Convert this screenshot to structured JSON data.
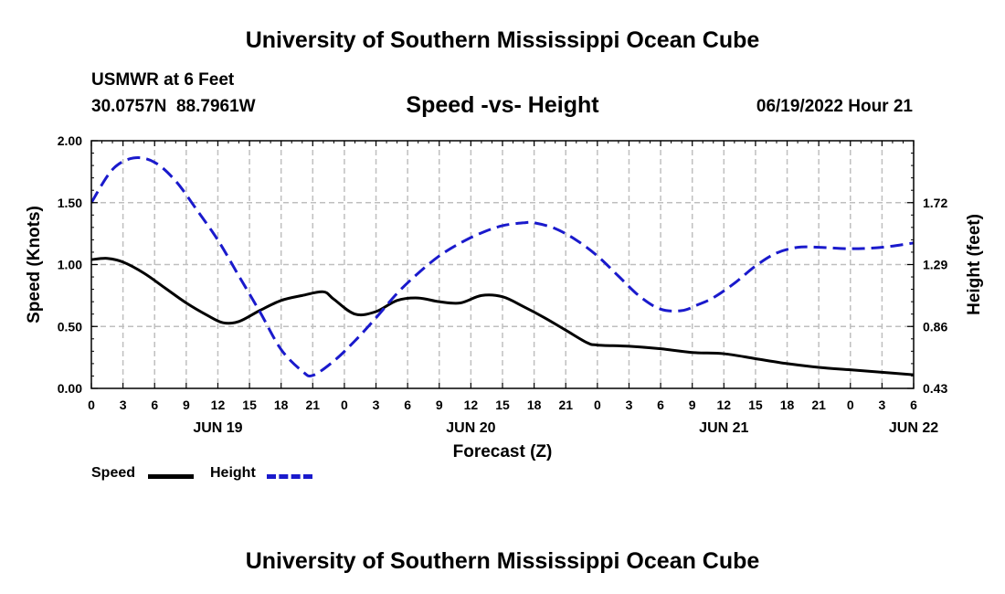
{
  "page": {
    "title_top": "University of Southern Mississippi Ocean Cube",
    "title_bottom": "University of Southern Mississippi Ocean Cube",
    "station_line": "USMWR at 6 Feet",
    "coords_line": "30.0757N  88.7961W",
    "chart_title": "Speed -vs- Height",
    "timestamp": "06/19/2022 Hour 21"
  },
  "legend": {
    "speed_label": "Speed",
    "height_label": "Height"
  },
  "colors": {
    "speed": "#000000",
    "height": "#1a1acc",
    "grid": "#bfbfbf"
  },
  "chart_data": {
    "type": "line",
    "title": "Speed -vs- Height",
    "xlabel": "Forecast (Z)",
    "ylabel": "Speed (Knots)",
    "y2label": "Height (feet)",
    "x_ticks": [
      "0",
      "3",
      "6",
      "9",
      "12",
      "15",
      "18",
      "21",
      "0",
      "3",
      "6",
      "9",
      "12",
      "15",
      "18",
      "21",
      "0",
      "3",
      "6",
      "9",
      "12",
      "15",
      "18",
      "21",
      "0",
      "3",
      "6"
    ],
    "date_labels": [
      {
        "label": "JUN 19",
        "hour": 12
      },
      {
        "label": "JUN 20",
        "hour": 36
      },
      {
        "label": "JUN 21",
        "hour": 60
      },
      {
        "label": "JUN 22",
        "hour": 78
      }
    ],
    "xlim": [
      0,
      78
    ],
    "ylim": [
      0,
      2.0
    ],
    "y_ticks": [
      "0.00",
      "0.50",
      "1.00",
      "1.50",
      "2.00"
    ],
    "y_tick_values": [
      0,
      0.5,
      1.0,
      1.5,
      2.0
    ],
    "y2lim": [
      0.43,
      2.15
    ],
    "y2_ticks": [
      "0.43",
      "0.86",
      "1.29",
      "1.72"
    ],
    "y2_tick_values": [
      0.43,
      0.86,
      1.29,
      1.72
    ],
    "grid": true,
    "series": [
      {
        "name": "Speed",
        "axis": "left",
        "style": "solid",
        "x": [
          0,
          1.5,
          3,
          5,
          7,
          9,
          11,
          12.5,
          14,
          16,
          18,
          20,
          22,
          23,
          25,
          27,
          29,
          31,
          33,
          35,
          37,
          39,
          41,
          43,
          45,
          47,
          48,
          51,
          54,
          57,
          60,
          63,
          66,
          69,
          72,
          75,
          78
        ],
        "values": [
          1.04,
          1.05,
          1.02,
          0.93,
          0.81,
          0.69,
          0.59,
          0.53,
          0.54,
          0.63,
          0.71,
          0.75,
          0.78,
          0.72,
          0.6,
          0.62,
          0.71,
          0.73,
          0.7,
          0.69,
          0.75,
          0.74,
          0.66,
          0.57,
          0.47,
          0.37,
          0.35,
          0.34,
          0.32,
          0.29,
          0.28,
          0.24,
          0.2,
          0.17,
          0.15,
          0.13,
          0.11
        ]
      },
      {
        "name": "Height",
        "axis": "right",
        "style": "dashed",
        "x": [
          0,
          2,
          4,
          6,
          8,
          10,
          12,
          14,
          16,
          18,
          20,
          21,
          23,
          25,
          27,
          29,
          31,
          33,
          35,
          37,
          39,
          41,
          42,
          44,
          46,
          48,
          50,
          52,
          54,
          56,
          57.5,
          59,
          61,
          63,
          65,
          67,
          69,
          72,
          75,
          78
        ],
        "values": [
          1.72,
          1.95,
          2.03,
          2.0,
          1.87,
          1.67,
          1.46,
          1.21,
          0.96,
          0.7,
          0.55,
          0.52,
          0.62,
          0.76,
          0.92,
          1.09,
          1.23,
          1.35,
          1.44,
          1.51,
          1.56,
          1.58,
          1.58,
          1.54,
          1.46,
          1.35,
          1.21,
          1.07,
          0.98,
          0.97,
          1.01,
          1.06,
          1.16,
          1.28,
          1.37,
          1.41,
          1.41,
          1.4,
          1.41,
          1.44
        ]
      }
    ]
  }
}
